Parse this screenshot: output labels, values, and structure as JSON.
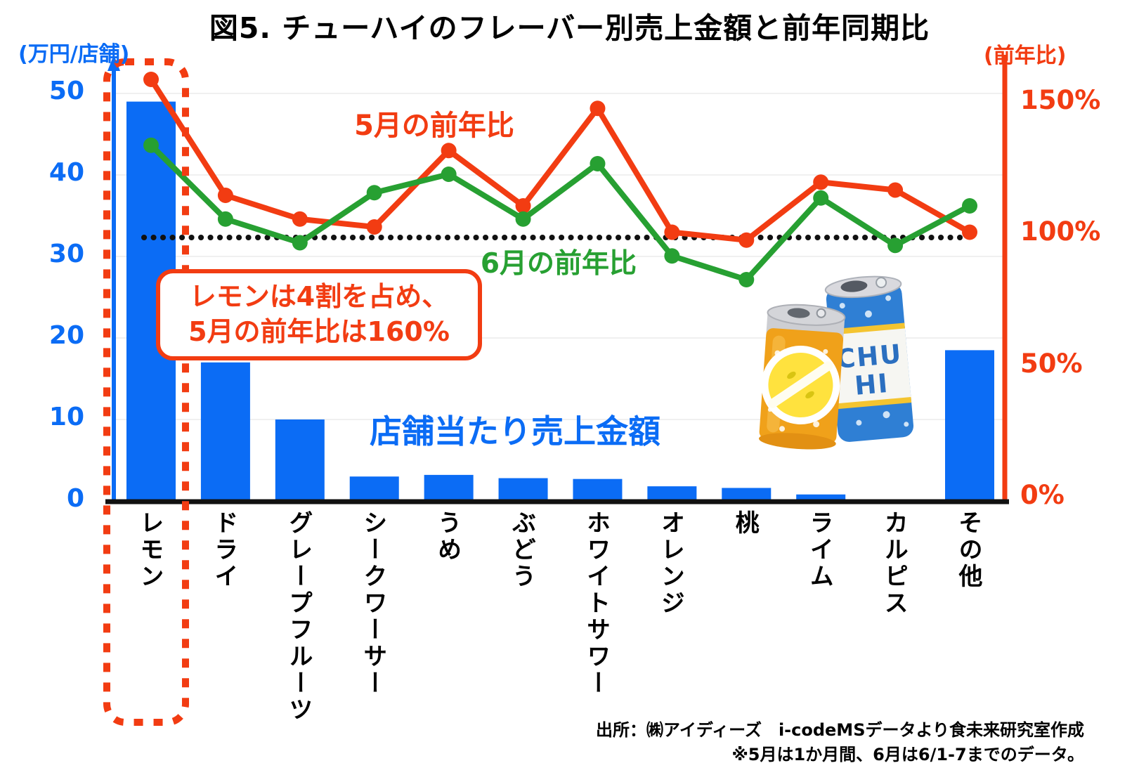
{
  "title": "図5. チューハイのフレーバー別売上金額と前年同期比",
  "annotation": {
    "line1": "レモンは4割を占め、",
    "line2": "5月の前年比は160%"
  },
  "source": {
    "line1": "出所：㈱アイディーズ　i-codeMSデータより食未来研究室作成",
    "line2": "※5月は1か月間、6月は6/1-7までのデータ。"
  },
  "illustration": {
    "line1": "CHU",
    "line2": "HI"
  },
  "colors": {
    "bar_blue": "#0b6cf5",
    "may_red": "#f23c12",
    "june_green": "#27a032",
    "axis_black": "#111111",
    "grid_gray": "#f0f0f0",
    "highlight_red": "#f23c12"
  },
  "chart_data": {
    "type": "combo",
    "categories": [
      "レモン",
      "ドライ",
      "グレープフルーツ",
      "シークワーサー",
      "うめ",
      "ぶどう",
      "ホワイトサワー",
      "オレンジ",
      "桃",
      "ライム",
      "カルピス",
      "その他"
    ],
    "bar_series": {
      "name": "店舗当たり売上金額",
      "axis": "left",
      "unit": "万円/店舗",
      "values": [
        49,
        17,
        10,
        3,
        3.2,
        2.8,
        2.7,
        1.8,
        1.6,
        0.8,
        0.2,
        18.5
      ]
    },
    "line_series": [
      {
        "name": "5月の前年比",
        "axis": "right",
        "unit": "%",
        "values": [
          160,
          116,
          107,
          104,
          133,
          112,
          149,
          102,
          99,
          121,
          118,
          102
        ]
      },
      {
        "name": "6月の前年比",
        "axis": "right",
        "unit": "%",
        "values": [
          135,
          107,
          98,
          117,
          124,
          107,
          128,
          93,
          84,
          115,
          97,
          112
        ]
      }
    ],
    "left_axis": {
      "label": "(万円/店舗)",
      "ticks": [
        50,
        40,
        30,
        20,
        10,
        0
      ],
      "range": [
        0,
        50
      ]
    },
    "right_axis": {
      "label": "(前年比)",
      "ticks": [
        "150%",
        "100%",
        "50%",
        "0%"
      ],
      "range_pct": [
        0,
        170
      ]
    },
    "reference_line_pct": 100,
    "grid": true,
    "legend_position": "inline-labels",
    "highlighted_category": "レモン"
  }
}
